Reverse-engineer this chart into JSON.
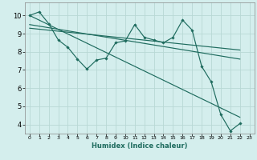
{
  "title": "",
  "xlabel": "Humidex (Indice chaleur)",
  "ylabel": "",
  "bg_color": "#d4eeed",
  "grid_color": "#b8d8d5",
  "line_color": "#1e6b5e",
  "xlim": [
    -0.5,
    23.5
  ],
  "ylim": [
    3.5,
    10.7
  ],
  "yticks": [
    4,
    5,
    6,
    7,
    8,
    9,
    10
  ],
  "xticks": [
    0,
    1,
    2,
    3,
    4,
    5,
    6,
    7,
    8,
    9,
    10,
    11,
    12,
    13,
    14,
    15,
    16,
    17,
    18,
    19,
    20,
    21,
    22,
    23
  ],
  "data_line": [
    10.0,
    10.2,
    9.55,
    8.65,
    8.25,
    7.6,
    7.05,
    7.55,
    7.65,
    8.5,
    8.6,
    9.5,
    8.8,
    8.65,
    8.5,
    8.8,
    9.75,
    9.2,
    7.2,
    6.35,
    4.55,
    3.65,
    4.05,
    null
  ],
  "line1_start_x": 0,
  "line1_start_y": 10.0,
  "line1_end_x": 22,
  "line1_end_y": 4.4,
  "line2_start_x": 0,
  "line2_start_y": 9.5,
  "line2_end_x": 22,
  "line2_end_y": 7.6,
  "line3_start_x": 0,
  "line3_start_y": 9.3,
  "line3_end_x": 22,
  "line3_end_y": 8.1
}
